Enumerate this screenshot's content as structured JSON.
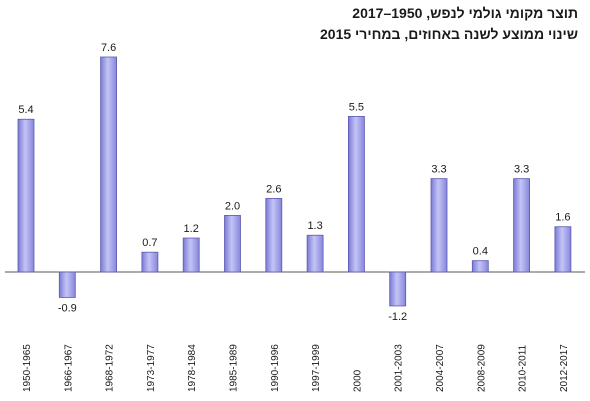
{
  "chart_data": {
    "type": "bar",
    "title_line1": "תוצר מקומי גולמי לנפש, 1950–2017",
    "title_line2": "שינוי ממוצע לשנה באחוזים, במחירי 2015",
    "categories": [
      "1950-1965",
      "1966-1967",
      "1968-1972",
      "1973-1977",
      "1978-1984",
      "1985-1989",
      "1990-1996",
      "1997-1999",
      "2000",
      "2001-2003",
      "2004-2007",
      "2008-2009",
      "2010-2011",
      "2012-2017"
    ],
    "values": [
      5.4,
      -0.9,
      7.6,
      0.7,
      1.2,
      2.0,
      2.6,
      1.3,
      5.5,
      -1.2,
      3.3,
      0.4,
      3.3,
      1.6
    ],
    "value_labels": [
      "5.4",
      "-0.9",
      "7.6",
      "0.7",
      "1.2",
      "2.0",
      "2.6",
      "1.3",
      "5.5",
      "-1.2",
      "3.3",
      "0.4",
      "3.3",
      "1.6"
    ],
    "ylim": [
      -2,
      8
    ],
    "grid": false,
    "bar_color": "#9b9bea",
    "bar_edge_color": "#5a5ab0"
  }
}
